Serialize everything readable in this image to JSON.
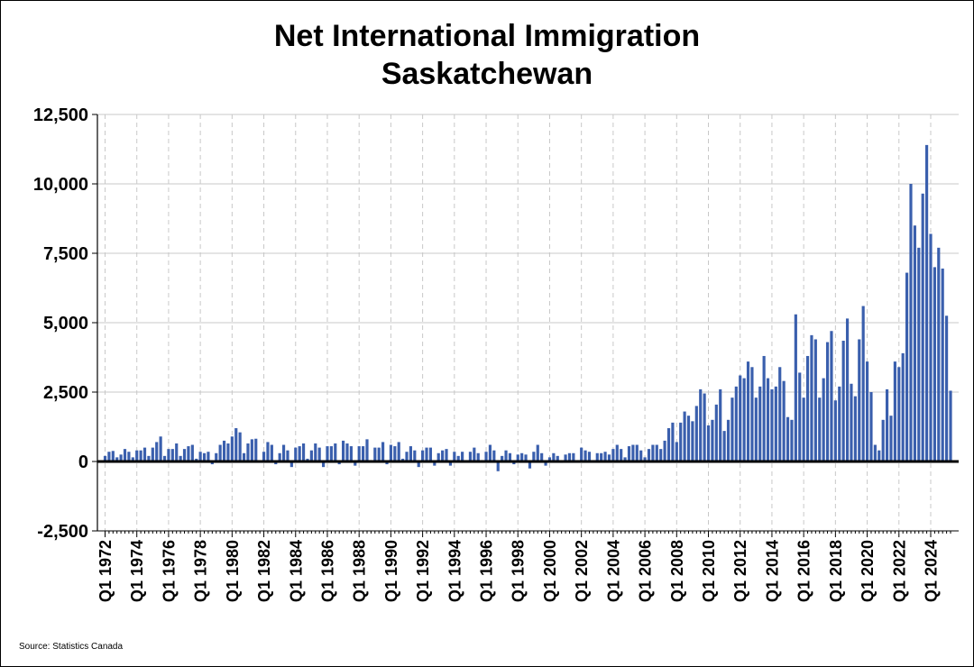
{
  "chart_data": {
    "type": "bar",
    "title_line1": "Net International Immigration",
    "title_line2": "Saskatchewan",
    "xlabel": "",
    "ylabel": "",
    "source": "Source: Statistics Canada",
    "ylim": [
      -2500,
      12500
    ],
    "yticks": [
      12500,
      10000,
      7500,
      5000,
      2500,
      0,
      -2500
    ],
    "ytick_labels": [
      "12,500",
      "10,000",
      "7,500",
      "5,000",
      "2,500",
      "0",
      "-2,500"
    ],
    "xtick_labels": [
      "Q1 1972",
      "Q1 1974",
      "Q1 1976",
      "Q1 1978",
      "Q1 1980",
      "Q1 1982",
      "Q1 1984",
      "Q1 1986",
      "Q1 1988",
      "Q1 1990",
      "Q1 1992",
      "Q1 1994",
      "Q1 1996",
      "Q1 1998",
      "Q1 2000",
      "Q1 2002",
      "Q1 2004",
      "Q1 2006",
      "Q1 2008",
      "Q1 2010",
      "Q1 2012",
      "Q1 2014",
      "Q1 2016",
      "Q1 2018",
      "Q1 2020",
      "Q1 2022",
      "Q1 2024"
    ],
    "start_year": 1972,
    "bar_color": "#3A5FAD",
    "series": [
      {
        "name": "Net International Immigration",
        "values": [
          200,
          350,
          380,
          150,
          250,
          450,
          350,
          150,
          400,
          400,
          500,
          200,
          500,
          700,
          900,
          200,
          450,
          450,
          650,
          200,
          450,
          550,
          600,
          100,
          350,
          300,
          350,
          -100,
          300,
          600,
          750,
          650,
          900,
          1200,
          1050,
          300,
          650,
          800,
          820,
          30,
          350,
          700,
          600,
          -100,
          300,
          600,
          400,
          -200,
          500,
          550,
          650,
          100,
          400,
          650,
          500,
          -200,
          550,
          550,
          650,
          -100,
          750,
          650,
          550,
          -150,
          550,
          550,
          800,
          50,
          500,
          500,
          700,
          -100,
          600,
          550,
          700,
          100,
          350,
          550,
          400,
          -200,
          400,
          500,
          500,
          -150,
          300,
          400,
          450,
          -150,
          350,
          200,
          350,
          50,
          350,
          500,
          300,
          50,
          350,
          600,
          400,
          -350,
          200,
          400,
          300,
          -100,
          250,
          300,
          250,
          -250,
          350,
          600,
          300,
          -150,
          150,
          300,
          200,
          -50,
          250,
          300,
          300,
          50,
          500,
          400,
          350,
          50,
          300,
          300,
          350,
          250,
          450,
          600,
          450,
          150,
          550,
          600,
          600,
          400,
          150,
          450,
          600,
          600,
          450,
          750,
          1200,
          1400,
          700,
          1400,
          1800,
          1650,
          1450,
          2000,
          2600,
          2450,
          1300,
          1500,
          2050,
          2600,
          1100,
          1500,
          2300,
          2700,
          3100,
          3000,
          3600,
          3400,
          2300,
          2700,
          3800,
          3000,
          2600,
          2700,
          3400,
          2900,
          1600,
          1500,
          5300,
          3200,
          2300,
          3800,
          4550,
          4400,
          2300,
          3000,
          4300,
          4700,
          2200,
          2700,
          4350,
          5150,
          2800,
          2350,
          4400,
          5600,
          3600,
          2500,
          600,
          400,
          1500,
          2600,
          1650,
          3600,
          3400,
          3900,
          6800,
          10000,
          8500,
          7700,
          9650,
          11400,
          8200,
          7000,
          7700,
          6950,
          5250,
          2550
        ]
      }
    ]
  }
}
